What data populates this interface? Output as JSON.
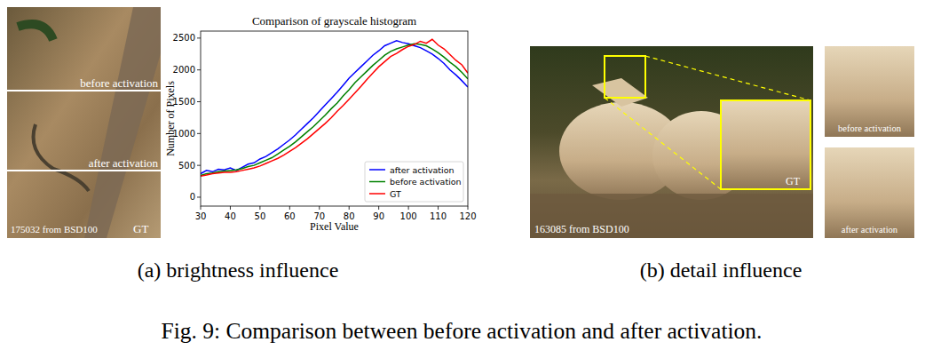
{
  "chart_data": {
    "type": "line",
    "title": "Comparison of grayscale histogram",
    "x_label": "Pixel Value",
    "y_label": "Number of Pixels",
    "x": [
      30,
      32,
      34,
      36,
      38,
      40,
      42,
      44,
      46,
      48,
      50,
      52,
      54,
      56,
      58,
      60,
      62,
      64,
      66,
      68,
      70,
      72,
      74,
      76,
      78,
      80,
      82,
      84,
      86,
      88,
      90,
      92,
      94,
      96,
      98,
      100,
      102,
      104,
      106,
      108,
      110,
      112,
      114,
      116,
      118,
      120
    ],
    "series": [
      {
        "name": "after activation",
        "color": "#0000ff",
        "values": [
          370,
          420,
          400,
          440,
          430,
          460,
          420,
          470,
          520,
          540,
          600,
          640,
          700,
          760,
          830,
          900,
          980,
          1070,
          1160,
          1250,
          1350,
          1450,
          1550,
          1650,
          1760,
          1870,
          1960,
          2050,
          2140,
          2230,
          2300,
          2380,
          2420,
          2460,
          2430,
          2410,
          2380,
          2350,
          2300,
          2250,
          2180,
          2100,
          2000,
          1920,
          1830,
          1730
        ]
      },
      {
        "name": "before activation",
        "color": "#008000",
        "values": [
          340,
          370,
          380,
          400,
          410,
          420,
          430,
          450,
          480,
          500,
          540,
          580,
          620,
          680,
          740,
          800,
          870,
          950,
          1030,
          1110,
          1200,
          1290,
          1390,
          1480,
          1590,
          1690,
          1800,
          1890,
          1980,
          2070,
          2150,
          2230,
          2290,
          2330,
          2360,
          2390,
          2410,
          2400,
          2380,
          2330,
          2270,
          2200,
          2120,
          2050,
          1960,
          1860
        ]
      },
      {
        "name": "GT",
        "color": "#ff0000",
        "values": [
          330,
          350,
          370,
          380,
          390,
          390,
          400,
          420,
          440,
          460,
          490,
          530,
          570,
          610,
          660,
          720,
          780,
          850,
          920,
          1000,
          1080,
          1160,
          1250,
          1350,
          1440,
          1540,
          1640,
          1740,
          1850,
          1950,
          2050,
          2130,
          2210,
          2260,
          2320,
          2370,
          2400,
          2450,
          2420,
          2480,
          2390,
          2330,
          2240,
          2150,
          2080,
          1950
        ]
      }
    ],
    "xlim": [
      30,
      120
    ],
    "ylim": [
      -140,
      2610
    ],
    "xticks": [
      30,
      40,
      50,
      60,
      70,
      80,
      90,
      100,
      110,
      120
    ],
    "yticks": [
      0,
      500,
      1000,
      1500,
      2000,
      2500
    ],
    "grid": false,
    "legend": "lower right"
  },
  "left_image": {
    "lines": [
      "before activation",
      "after activation"
    ],
    "source": "175032 from BSD100",
    "tag": "GT"
  },
  "right_image": {
    "source": "163085 from BSD100",
    "inset_tag": "GT",
    "crops": [
      "before activation",
      "after activation"
    ]
  },
  "subcaptions": [
    "(a) brightness influence",
    "(b) detail influence"
  ],
  "caption": "Fig. 9: Comparison between before activation and after activation."
}
